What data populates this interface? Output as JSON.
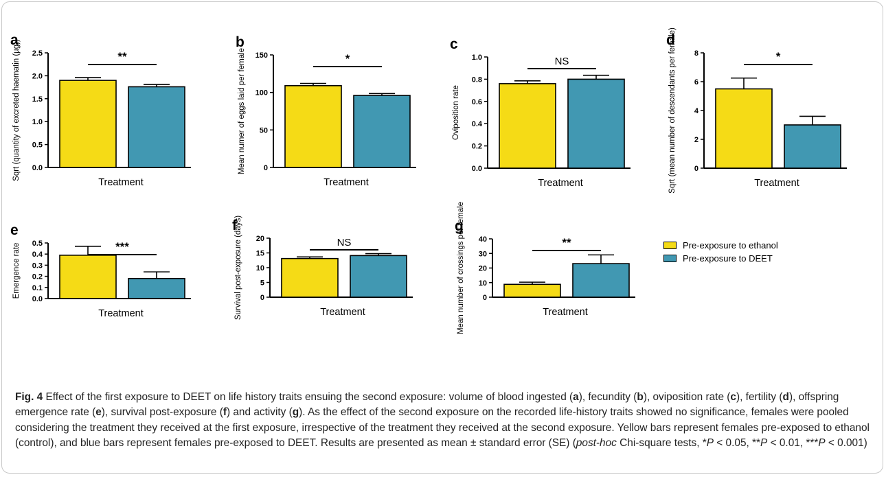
{
  "colors": {
    "ethanol": "#f5db16",
    "deet": "#4198b2"
  },
  "legend": [
    {
      "label": "Pre-exposure to ethanol",
      "color": "#f5db16"
    },
    {
      "label": "Pre-exposure to DEET",
      "color": "#4198b2"
    }
  ],
  "caption": {
    "fig_label": "Fig. 4",
    "p1": " Effect of the first exposure to DEET on life history traits ensuing the second exposure: volume of blood ingested (",
    "a": "a",
    "p2": "), fecundity (",
    "b": "b",
    "p3": "), oviposition rate (",
    "c": "c",
    "p4": "), fertility (",
    "d": "d",
    "p5": "), offspring emergence rate (",
    "e": "e",
    "p6": "), survival post-exposure (",
    "f": "f",
    "p7": ") and activity (",
    "g": "g",
    "p8": "). As the effect of the second exposure on the recorded life-history traits showed no significance, females were pooled considering the treatment they received at the first exposure, irrespective of the treatment they received at the second exposure. Yellow bars represent females pre-exposed to ethanol (control), and blue bars represent females pre-exposed to DEET. Results are presented as mean ± standard error (SE) (",
    "post_hoc": "post-hoc",
    "p9": " Chi-square tests, *",
    "P1": "P",
    "p10": " < 0.05, **",
    "P2": "P",
    "p11": " < 0.01, ***",
    "P3": "P",
    "p12": " < 0.001)"
  },
  "chart_data": [
    {
      "panel": "a",
      "type": "bar",
      "categories": [
        "Pre-exposure to ethanol",
        "Pre-exposure to DEET"
      ],
      "values": [
        1.9,
        1.76
      ],
      "errors": [
        0.06,
        0.05
      ],
      "ylabel": "Sqrt (quantity of excreted haematin (µg))",
      "xlabel": "Treatment",
      "ylim": [
        0,
        2.5
      ],
      "ticks": [
        "0.0",
        "0.5",
        "1.0",
        "1.5",
        "2.0",
        "2.5"
      ],
      "significance": "**"
    },
    {
      "panel": "b",
      "type": "bar",
      "categories": [
        "Pre-exposure to ethanol",
        "Pre-exposure to DEET"
      ],
      "values": [
        109,
        96
      ],
      "errors": [
        3,
        2.5
      ],
      "ylabel": "Mean numer of eggs laid per female",
      "xlabel": "Treatment",
      "ylim": [
        0,
        150
      ],
      "ticks": [
        "0",
        "50",
        "100",
        "150"
      ],
      "significance": "*"
    },
    {
      "panel": "c",
      "type": "bar",
      "categories": [
        "Pre-exposure to ethanol",
        "Pre-exposure to DEET"
      ],
      "values": [
        0.76,
        0.8
      ],
      "errors": [
        0.025,
        0.035
      ],
      "ylabel": "Oviposition rate",
      "xlabel": "Treatment",
      "ylim": [
        0,
        1.0
      ],
      "ticks": [
        "0.0",
        "0.2",
        "0.4",
        "0.6",
        "0.8",
        "1.0"
      ],
      "significance": "NS"
    },
    {
      "panel": "d",
      "type": "bar",
      "categories": [
        "Pre-exposure to ethanol",
        "Pre-exposure to DEET"
      ],
      "values": [
        5.5,
        3.0
      ],
      "errors": [
        0.75,
        0.6
      ],
      "ylabel": "Sqrt (mean number of descendants per female)",
      "xlabel": "Treatment",
      "ylim": [
        0,
        8
      ],
      "ticks": [
        "0",
        "2",
        "4",
        "6",
        "8"
      ],
      "significance": "*"
    },
    {
      "panel": "e",
      "type": "bar",
      "categories": [
        "Pre-exposure to ethanol",
        "Pre-exposure to DEET"
      ],
      "values": [
        0.39,
        0.18
      ],
      "errors": [
        0.08,
        0.06
      ],
      "ylabel": "Emergence rate",
      "xlabel": "Treatment",
      "ylim": [
        0,
        0.5
      ],
      "ticks": [
        "0.0",
        "0.1",
        "0.2",
        "0.3",
        "0.4",
        "0.5"
      ],
      "significance": "***"
    },
    {
      "panel": "f",
      "type": "bar",
      "categories": [
        "Pre-exposure to ethanol",
        "Pre-exposure to DEET"
      ],
      "values": [
        13.1,
        14.1
      ],
      "errors": [
        0.55,
        0.65
      ],
      "ylabel": "Survival post-exposure (days)",
      "xlabel": "Treatment",
      "ylim": [
        0,
        20
      ],
      "ticks": [
        "0",
        "5",
        "10",
        "15",
        "20"
      ],
      "significance": "NS"
    },
    {
      "panel": "g",
      "type": "bar",
      "categories": [
        "Pre-exposure to ethanol",
        "Pre-exposure to DEET"
      ],
      "values": [
        8.8,
        23.0
      ],
      "errors": [
        1.5,
        6.0
      ],
      "ylabel": "Mean number of crossings per female",
      "xlabel": "Treatment",
      "ylim": [
        0,
        40
      ],
      "ticks": [
        "0",
        "10",
        "20",
        "30",
        "40"
      ],
      "significance": "**"
    }
  ]
}
